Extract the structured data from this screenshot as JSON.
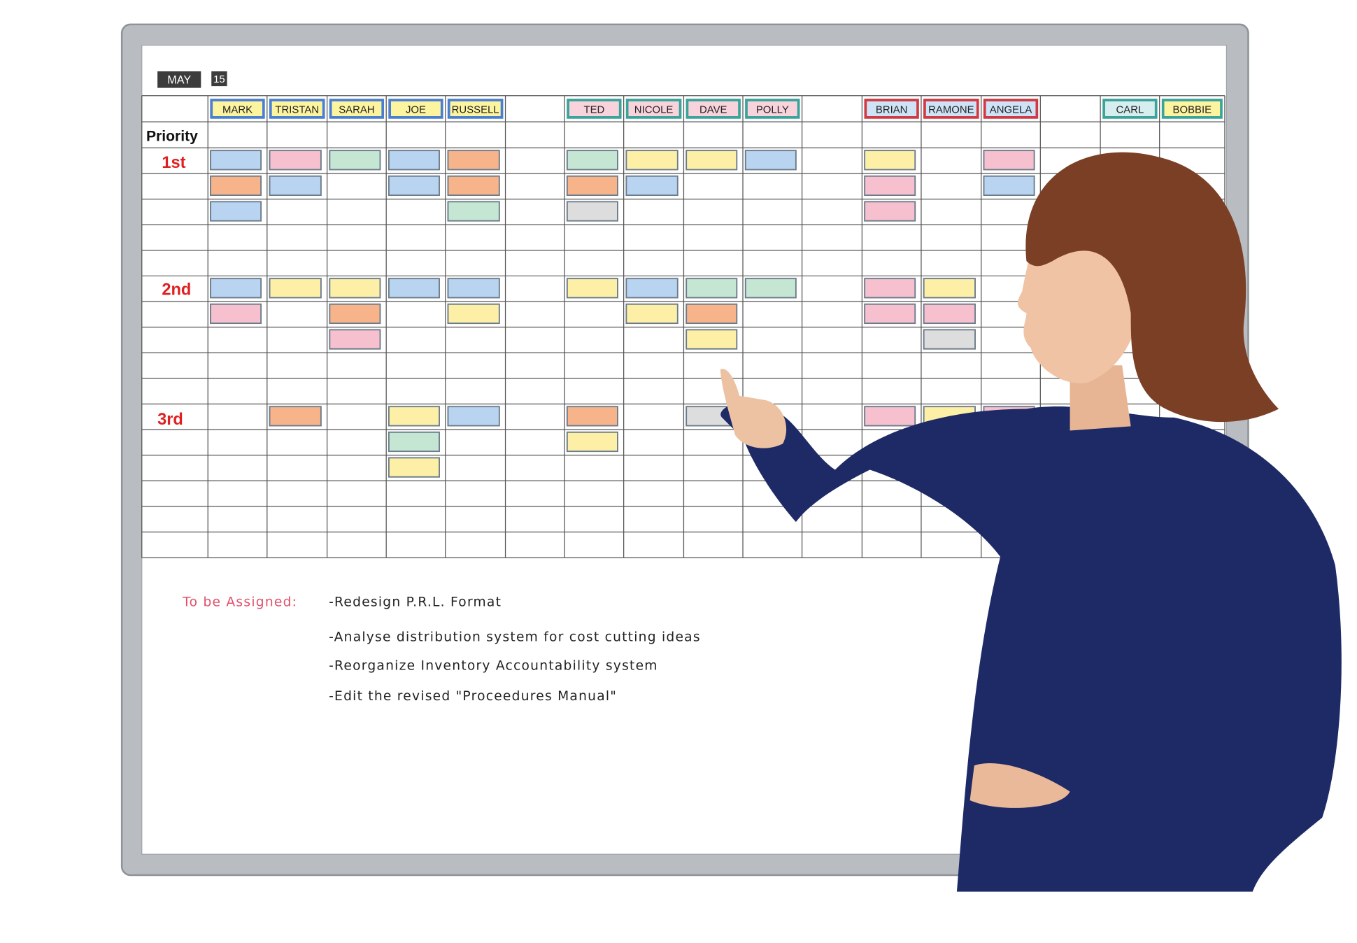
{
  "header": {
    "month": "MAY",
    "day": "15"
  },
  "names": [
    "MARK",
    "TRISTAN",
    "SARAH",
    "JOE",
    "RUSSELL",
    "TED",
    "NICOLE",
    "DAVE",
    "POLLY",
    "BRIAN",
    "RAMONE",
    "ANGELA",
    "CARL",
    "BOBBIE"
  ],
  "priority": {
    "label": "Priority",
    "levels": [
      "1st",
      "2nd",
      "3rd"
    ]
  },
  "notes": {
    "title": "To be Assigned:",
    "items": [
      "-Redesign P.R.L. Format",
      "-Analyse distribution system for cost cutting ideas",
      "-Reorganize Inventory Accountability system",
      "-Edit the revised \"Proceedures Manual\""
    ]
  }
}
